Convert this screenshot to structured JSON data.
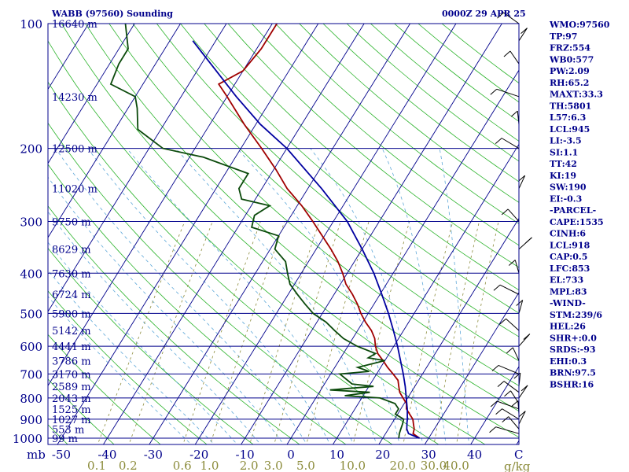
{
  "chart_data": {
    "type": "line",
    "title_left": "WABB (97560) Sounding",
    "title_right": "0000Z 29 APR 25",
    "pressure_axis": {
      "unit_label": "mb",
      "ticks": [
        "100",
        "200",
        "300",
        "400",
        "500",
        "600",
        "700",
        "800",
        "900",
        "1000"
      ],
      "range": [
        1050,
        100
      ],
      "scale": "log"
    },
    "height_labels": [
      {
        "p": 100,
        "label": "16640 m"
      },
      {
        "p": 150,
        "label": "14230 m"
      },
      {
        "p": 200,
        "label": "12500 m"
      },
      {
        "p": 250,
        "label": "11020 m"
      },
      {
        "p": 300,
        "label": "9750 m"
      },
      {
        "p": 350,
        "label": "8629 m"
      },
      {
        "p": 400,
        "label": "7630 m"
      },
      {
        "p": 450,
        "label": "6724 m"
      },
      {
        "p": 500,
        "label": "5900 m"
      },
      {
        "p": 550,
        "label": "5142 m"
      },
      {
        "p": 600,
        "label": "4441 m"
      },
      {
        "p": 650,
        "label": "3786 m"
      },
      {
        "p": 700,
        "label": "3170 m"
      },
      {
        "p": 750,
        "label": "2589 m"
      },
      {
        "p": 800,
        "label": "2043 m"
      },
      {
        "p": 850,
        "label": "1525 m"
      },
      {
        "p": 900,
        "label": "1027 m"
      },
      {
        "p": 950,
        "label": "553 m"
      },
      {
        "p": 1000,
        "label": "99 m"
      }
    ],
    "temperature_axis": {
      "unit_label": "C",
      "ticks": [
        "-50",
        "-40",
        "-30",
        "-20",
        "-10",
        "0",
        "10",
        "20",
        "30",
        "40"
      ],
      "range": [
        -50,
        50
      ]
    },
    "mixing_ratio_axis": {
      "unit_label": "g/kg",
      "ticks": [
        "0.1",
        "0.2",
        "0.6",
        "1.0",
        "2.0",
        "3.0",
        "5.0",
        "10.0",
        "20.0",
        "30.0",
        "40.0"
      ]
    },
    "series": [
      {
        "key": "temperature",
        "color": "#a00000",
        "points": [
          [
            1000,
            28
          ],
          [
            975,
            26
          ],
          [
            950,
            25.6
          ],
          [
            925,
            24.8
          ],
          [
            900,
            24
          ],
          [
            875,
            22.6
          ],
          [
            850,
            21.2
          ],
          [
            825,
            20.5
          ],
          [
            800,
            19
          ],
          [
            775,
            17.5
          ],
          [
            750,
            16.5
          ],
          [
            725,
            15.5
          ],
          [
            700,
            13.6
          ],
          [
            675,
            11.5
          ],
          [
            650,
            9.6
          ],
          [
            625,
            7.5
          ],
          [
            600,
            6
          ],
          [
            575,
            4.8
          ],
          [
            550,
            3
          ],
          [
            525,
            0.6
          ],
          [
            500,
            -1.6
          ],
          [
            475,
            -3.6
          ],
          [
            450,
            -6
          ],
          [
            425,
            -8.8
          ],
          [
            400,
            -11
          ],
          [
            375,
            -13.6
          ],
          [
            350,
            -16.8
          ],
          [
            325,
            -20.5
          ],
          [
            300,
            -24.5
          ],
          [
            275,
            -29
          ],
          [
            250,
            -34.5
          ],
          [
            225,
            -39.5
          ],
          [
            200,
            -45.5
          ],
          [
            175,
            -52.5
          ],
          [
            150,
            -60
          ],
          [
            140,
            -63.5
          ],
          [
            130,
            -60
          ],
          [
            115,
            -59
          ],
          [
            100,
            -59
          ]
        ]
      },
      {
        "key": "dewpoint",
        "color": "#0b4a0b",
        "points": [
          [
            1000,
            23.5
          ],
          [
            975,
            23
          ],
          [
            950,
            22.7
          ],
          [
            925,
            22.4
          ],
          [
            900,
            22
          ],
          [
            875,
            19.5
          ],
          [
            850,
            19.5
          ],
          [
            825,
            18
          ],
          [
            800,
            14
          ],
          [
            790,
            6
          ],
          [
            775,
            11
          ],
          [
            765,
            2
          ],
          [
            750,
            11
          ],
          [
            740,
            6
          ],
          [
            700,
            2
          ],
          [
            690,
            8
          ],
          [
            675,
            5
          ],
          [
            650,
            10
          ],
          [
            640,
            6
          ],
          [
            625,
            7
          ],
          [
            600,
            2
          ],
          [
            575,
            -2
          ],
          [
            550,
            -5
          ],
          [
            525,
            -8
          ],
          [
            500,
            -12
          ],
          [
            475,
            -15
          ],
          [
            450,
            -18
          ],
          [
            425,
            -21
          ],
          [
            400,
            -23
          ],
          [
            375,
            -25
          ],
          [
            350,
            -29
          ],
          [
            325,
            -30
          ],
          [
            310,
            -37
          ],
          [
            290,
            -38
          ],
          [
            275,
            -36
          ],
          [
            265,
            -43
          ],
          [
            250,
            -45
          ],
          [
            230,
            -45
          ],
          [
            210,
            -57
          ],
          [
            200,
            -67
          ],
          [
            180,
            -75
          ],
          [
            160,
            -78
          ],
          [
            150,
            -80
          ],
          [
            140,
            -87
          ],
          [
            125,
            -88
          ],
          [
            115,
            -88
          ],
          [
            100,
            -92
          ]
        ]
      },
      {
        "key": "parcel",
        "color": "#0000a0",
        "points": [
          [
            1000,
            28
          ],
          [
            975,
            25
          ],
          [
            950,
            24
          ],
          [
            918,
            23.2
          ],
          [
            900,
            22.8
          ],
          [
            850,
            21.4
          ],
          [
            800,
            19.7
          ],
          [
            750,
            17.9
          ],
          [
            700,
            15.8
          ],
          [
            650,
            13.4
          ],
          [
            600,
            10.8
          ],
          [
            550,
            7.8
          ],
          [
            500,
            4.4
          ],
          [
            450,
            0.4
          ],
          [
            400,
            -4.2
          ],
          [
            350,
            -10
          ],
          [
            300,
            -17
          ],
          [
            250,
            -27
          ],
          [
            200,
            -40
          ],
          [
            175,
            -49
          ],
          [
            150,
            -58
          ],
          [
            125,
            -68
          ],
          [
            110,
            -75
          ]
        ]
      }
    ]
  },
  "parameters": [
    "WMO:97560",
    "TP:97",
    "FRZ:554",
    "WB0:577",
    "PW:2.09",
    "RH:65.2",
    "MAXT:33.3",
    "TH:5801",
    "L57:6.3",
    "LCL:945",
    "LI:-3.5",
    "SI:1.1",
    "TT:42",
    "KI:19",
    "SW:190",
    "EI:-0.3",
    "-PARCEL-",
    "CAPE:1535",
    "CINH:6",
    "LCL:918",
    "CAP:0.5",
    "LFC:853",
    "EL:733",
    "MPL:83",
    "-WIND-",
    "STM:239/6",
    "HEL:26",
    "SHR+:0.0",
    "SRDS:-93",
    "EHI:0.3",
    "BRN:97.5",
    "BSHR:16"
  ],
  "colors": {
    "frame": "#00008b",
    "isobar": "#00008b",
    "isotherm": "#00008b",
    "dry_adiabat": "#2bb32b",
    "moist_adiabat": "#5fa8d8",
    "mixing_ratio": "#8b8b3a",
    "wind_barb": "#000000"
  }
}
